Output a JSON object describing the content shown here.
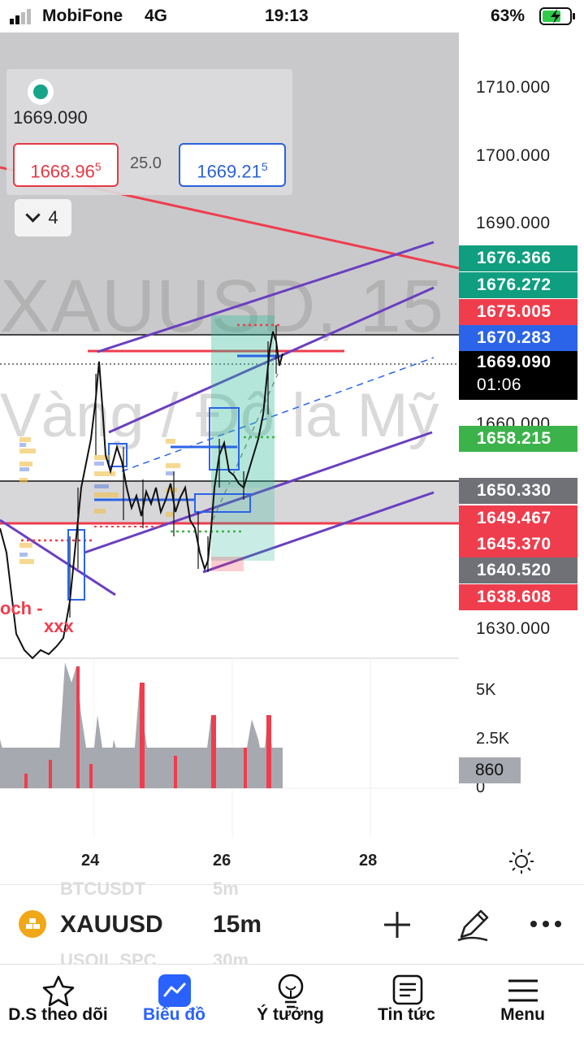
{
  "status_bar": {
    "carrier": "MobiFone",
    "network": "4G",
    "time": "19:13",
    "battery": "63%"
  },
  "legend": {
    "last_price": "1669.090",
    "bid_main": "1668.96",
    "bid_sup": "5",
    "spread": "25.0",
    "ask_main": "1669.21",
    "ask_sup": "5",
    "indicators_count": "4"
  },
  "watermark": {
    "symbol_line": "XAUUSD, 15",
    "description_line": "Vàng / Đô la Mỹ"
  },
  "price_axis": {
    "ticks": [
      "1710.000",
      "1700.000",
      "1690.000",
      "1660.000",
      "1630.000"
    ],
    "tags": [
      {
        "value": "1676.366",
        "color": "#0f9e80"
      },
      {
        "value": "1676.272",
        "color": "#0f9e80"
      },
      {
        "value": "1675.005",
        "color": "#ef3d4d"
      },
      {
        "value": "1670.283",
        "color": "#2b64e8"
      },
      {
        "value": "1669.090",
        "color": "#000000"
      },
      {
        "value": "1658.215",
        "color": "#3cb34a"
      },
      {
        "value": "1650.330",
        "color": "#6f7177"
      },
      {
        "value": "1649.467",
        "color": "#ef3d4d"
      },
      {
        "value": "1645.370",
        "color": "#ef3d4d"
      },
      {
        "value": "1640.520",
        "color": "#6f7177"
      },
      {
        "value": "1638.608",
        "color": "#ef3d4d"
      }
    ],
    "countdown": "01:06"
  },
  "volume_axis": {
    "ticks": [
      "5K",
      "2.5K",
      "0"
    ],
    "current": "860"
  },
  "time_axis": {
    "labels": [
      "24",
      "26",
      "28"
    ]
  },
  "chart_annotations": {
    "choch_label": "och -",
    "x_marks": "xxx"
  },
  "symbol_bar": {
    "symbol": "XAUUSD",
    "interval": "15m",
    "ghost_prev_symbol": "BTCUSDT",
    "ghost_prev_interval": "5m",
    "ghost_next_symbol": "USOIL.SPC",
    "ghost_next_interval": "30m"
  },
  "tabs": [
    {
      "label": "D.S theo dõi",
      "icon": "star-icon",
      "active": false
    },
    {
      "label": "Biểu đồ",
      "icon": "chart-icon",
      "active": true
    },
    {
      "label": "Ý tưởng",
      "icon": "lightbulb-icon",
      "active": false
    },
    {
      "label": "Tin tức",
      "icon": "news-icon",
      "active": false
    },
    {
      "label": "Menu",
      "icon": "menu-icon",
      "active": false
    }
  ],
  "colors": {
    "accent": "#2962ff",
    "bull": "#0f9e80",
    "bear": "#ef3d4d",
    "channel": "#6a3fc1"
  }
}
